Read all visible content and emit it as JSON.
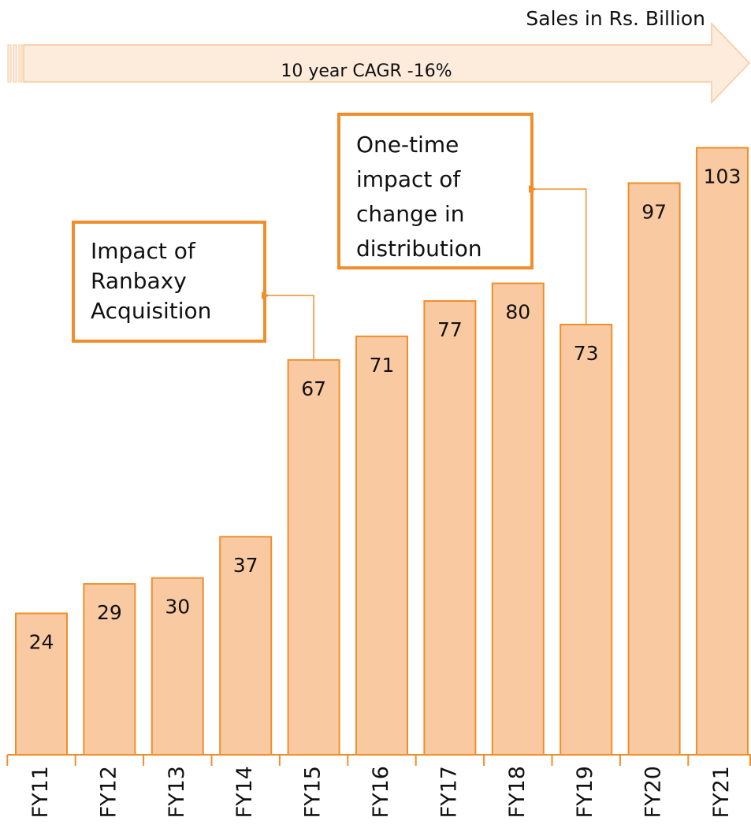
{
  "chart_data": {
    "type": "bar",
    "title": "Sales in Rs. Billion",
    "subtitle": "10 year CAGR -16%",
    "categories": [
      "FY11",
      "FY12",
      "FY13",
      "FY14",
      "FY15",
      "FY16",
      "FY17",
      "FY18",
      "FY19",
      "FY20",
      "FY21"
    ],
    "values": [
      24,
      29,
      30,
      37,
      67,
      71,
      77,
      80,
      73,
      97,
      103
    ],
    "color": "#f9c9a2",
    "edge_color": "#ef8f2c",
    "ylim": [
      0,
      100
    ],
    "grid": false,
    "annotations": [
      {
        "lines": [
          "Impact of",
          "Ranbaxy",
          "Acquisition"
        ],
        "category": "FY15"
      },
      {
        "lines": [
          "One-time",
          "impact of",
          "change in",
          "distribution"
        ],
        "category": "FY19"
      }
    ]
  }
}
